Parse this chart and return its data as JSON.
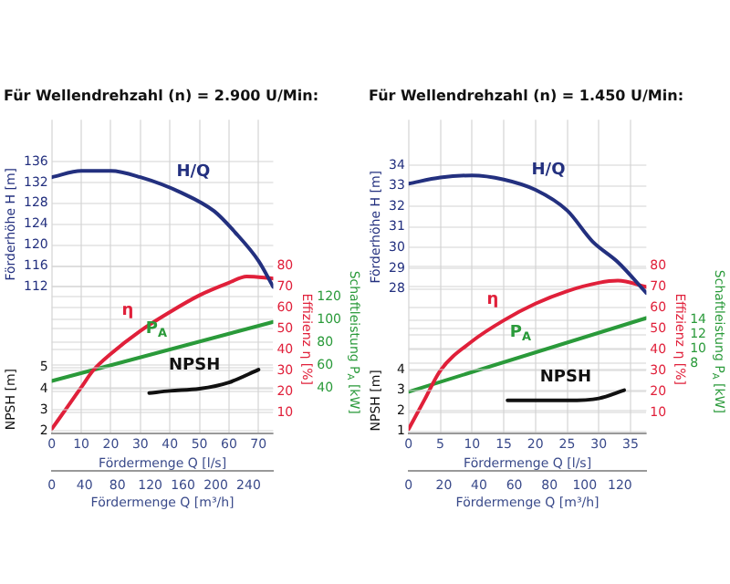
{
  "chart_data": [
    {
      "type": "line",
      "title": "Für Wellendrehzahl (n) = 2.900 U/Min:",
      "xlabel": "Fördermenge Q [l/s]",
      "x2label": "Fördermenge Q [m³/h]",
      "ylabel": "Förderhöhe H [m]",
      "y2label": "Effizienz η [%]",
      "y3label": "Schaftleistung P$_{A}$ [kW]",
      "xlim": [
        0,
        75
      ],
      "xticks": [
        0,
        10,
        20,
        30,
        40,
        50,
        60,
        70
      ],
      "x2lim": [
        0,
        270
      ],
      "x2ticks": [
        0,
        40,
        80,
        120,
        160,
        200,
        240
      ],
      "ylim": [
        84,
        144
      ],
      "yticks": [
        112,
        116,
        120,
        124,
        128,
        132,
        136
      ],
      "y2lim": [
        0,
        150
      ],
      "y2ticks": [
        10,
        20,
        30,
        40,
        50,
        60,
        70,
        80
      ],
      "y3lim": [
        0,
        276
      ],
      "y3ticks": [
        40,
        60,
        80,
        100,
        120
      ],
      "grid": true,
      "legend": false,
      "marker": "none",
      "line_style": "solid",
      "series": [
        {
          "name": "H/Q",
          "color": "#23307f",
          "axis": "y",
          "x": [
            0,
            10,
            20,
            30,
            44,
            55,
            62,
            70,
            75
          ],
          "values": [
            133,
            134.2,
            134.2,
            133,
            130,
            126.5,
            122.5,
            117,
            112
          ]
        },
        {
          "name": "η",
          "color": "#e0203a",
          "axis": "y2",
          "x": [
            0,
            5,
            10,
            14,
            20,
            30,
            40,
            50,
            60,
            66,
            75
          ],
          "values": [
            2,
            12,
            22,
            30,
            38,
            49,
            58,
            66,
            72,
            75,
            74
          ]
        },
        {
          "name": "P$_{A}$",
          "color": "#2a9a3a",
          "axis": "y3",
          "x": [
            0,
            75
          ],
          "values": [
            46,
            98
          ]
        }
      ]
    },
    {
      "type": "line",
      "ylabel": "NPSH [m]",
      "xlim": [
        0,
        75
      ],
      "ylim": [
        1.9,
        16.7
      ],
      "yticks": [
        2,
        3,
        4,
        5
      ],
      "grid": "y",
      "tick_labels": "y",
      "legend": false,
      "marker": "none",
      "line_style": "solid",
      "series": [
        {
          "name": "NPSH",
          "color": "#111111",
          "x": [
            33,
            40,
            50,
            60,
            70
          ],
          "values": [
            3.8,
            3.9,
            4.0,
            4.3,
            4.9
          ]
        }
      ]
    },
    {
      "type": "line",
      "title": "Für Wellendrehzahl (n) = 1.450 U/Min:",
      "xlabel": "Fördermenge Q [l/s]",
      "x2label": "Fördermenge Q [m³/h]",
      "ylabel": "Förderhöhe H [m]",
      "y2label": "Effizienz η [%]",
      "y3label": "Schaftleistung P$_{A}$ [kW]",
      "xlim": [
        0,
        37.5
      ],
      "xticks": [
        0,
        5,
        10,
        15,
        20,
        25,
        30,
        35
      ],
      "x2lim": [
        0,
        135
      ],
      "x2ticks": [
        0,
        20,
        40,
        60,
        80,
        100,
        120
      ],
      "ylim": [
        21,
        36.2
      ],
      "yticks": [
        28,
        29,
        30,
        31,
        32,
        33,
        34
      ],
      "y2lim": [
        0,
        150
      ],
      "y2ticks": [
        10,
        20,
        30,
        40,
        50,
        60,
        70,
        80
      ],
      "y3lim": [
        -1.8,
        42
      ],
      "y3ticks": [
        8,
        10,
        12,
        14
      ],
      "grid": true,
      "legend": false,
      "marker": "none",
      "line_style": "solid",
      "series": [
        {
          "name": "H/Q",
          "color": "#23307f",
          "axis": "y",
          "x": [
            0,
            5,
            10,
            15,
            20,
            25,
            29,
            33,
            37.5
          ],
          "values": [
            33.1,
            33.4,
            33.5,
            33.3,
            32.8,
            31.8,
            30.3,
            29.3,
            27.8
          ]
        },
        {
          "name": "η",
          "color": "#e0203a",
          "axis": "y2",
          "x": [
            0,
            2.5,
            5,
            10,
            15,
            20,
            25,
            30,
            33,
            37.5
          ],
          "values": [
            2,
            16,
            30,
            44,
            54,
            62,
            68,
            72,
            73,
            70
          ]
        },
        {
          "name": "P$_{A}$",
          "color": "#2a9a3a",
          "axis": "y3",
          "x": [
            0,
            37.5
          ],
          "values": [
            4,
            14.3
          ]
        }
      ]
    },
    {
      "type": "line",
      "ylabel": "NPSH [m]",
      "xlim": [
        0,
        37.5
      ],
      "ylim": [
        0.9,
        16.2
      ],
      "yticks": [
        1,
        2,
        3,
        4
      ],
      "grid": "y",
      "tick_labels": "y",
      "legend": false,
      "marker": "none",
      "line_style": "solid",
      "series": [
        {
          "name": "NPSH",
          "color": "#111111",
          "x": [
            15.6,
            25,
            30,
            34
          ],
          "values": [
            2.5,
            2.5,
            2.6,
            3.0
          ]
        }
      ]
    }
  ]
}
